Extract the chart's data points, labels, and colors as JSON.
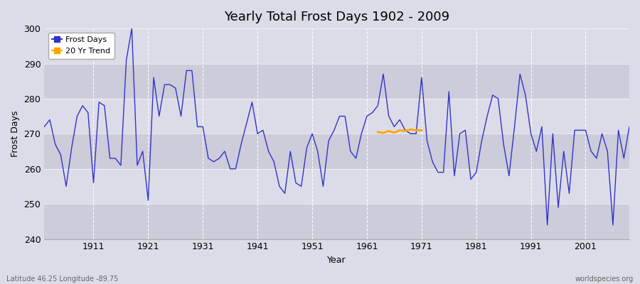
{
  "title": "Yearly Total Frost Days 1902 - 2009",
  "xlabel": "Year",
  "ylabel": "Frost Days",
  "footer_left": "Latitude 46.25 Longitude -89.75",
  "footer_right": "worldspecies.org",
  "ylim": [
    240,
    300
  ],
  "yticks": [
    240,
    250,
    260,
    270,
    280,
    290,
    300
  ],
  "xtick_years": [
    1911,
    1921,
    1931,
    1941,
    1951,
    1961,
    1971,
    1981,
    1991,
    2001
  ],
  "frost_days": {
    "1902": 272,
    "1903": 274,
    "1904": 267,
    "1905": 264,
    "1906": 255,
    "1907": 266,
    "1908": 275,
    "1909": 278,
    "1910": 276,
    "1911": 256,
    "1912": 279,
    "1913": 278,
    "1914": 263,
    "1915": 263,
    "1916": 261,
    "1917": 291,
    "1918": 300,
    "1919": 261,
    "1920": 265,
    "1921": 251,
    "1922": 286,
    "1923": 275,
    "1924": 284,
    "1925": 284,
    "1926": 283,
    "1927": 275,
    "1928": 288,
    "1929": 288,
    "1930": 272,
    "1931": 272,
    "1932": 263,
    "1933": 262,
    "1934": 263,
    "1935": 265,
    "1936": 260,
    "1937": 260,
    "1938": 267,
    "1939": 273,
    "1940": 279,
    "1941": 270,
    "1942": 271,
    "1943": 265,
    "1944": 262,
    "1945": 255,
    "1946": 253,
    "1947": 265,
    "1948": 256,
    "1949": 255,
    "1950": 266,
    "1951": 270,
    "1952": 265,
    "1953": 255,
    "1954": 268,
    "1955": 271,
    "1956": 275,
    "1957": 275,
    "1958": 265,
    "1959": 263,
    "1960": 270,
    "1961": 275,
    "1962": 276,
    "1963": 278,
    "1964": 287,
    "1965": 275,
    "1966": 272,
    "1967": 274,
    "1968": 271,
    "1969": 270,
    "1970": 270,
    "1971": 286,
    "1972": 268,
    "1973": 262,
    "1974": 259,
    "1975": 259,
    "1976": 282,
    "1977": 258,
    "1978": 270,
    "1979": 271,
    "1980": 257,
    "1981": 259,
    "1982": 268,
    "1983": 275,
    "1984": 281,
    "1985": 280,
    "1986": 267,
    "1987": 258,
    "1988": 272,
    "1989": 287,
    "1990": 281,
    "1991": 270,
    "1992": 265,
    "1993": 272,
    "1994": 244,
    "1995": 270,
    "1996": 249,
    "1997": 265,
    "1998": 253,
    "1999": 271,
    "2000": 271,
    "2001": 271,
    "2002": 265,
    "2003": 263,
    "2004": 270,
    "2005": 265,
    "2006": 244,
    "2007": 271,
    "2008": 263,
    "2009": 272
  },
  "trend_years": [
    1963,
    1964,
    1965,
    1966,
    1967,
    1968,
    1969,
    1970,
    1971
  ],
  "trend_values": [
    270.5,
    270.2,
    270.8,
    270.3,
    271.0,
    270.8,
    271.2,
    271.0,
    271.0
  ],
  "line_color": "#3333cc",
  "trend_color": "#ffa500",
  "fig_bg_color": "#dcdce8",
  "plot_bg_light": "#dcdce8",
  "plot_bg_dark": "#c8c8d8",
  "band_alpha": 1.0,
  "legend_frost_color": "#3333cc",
  "legend_trend_color": "#ffa500",
  "band_ranges": [
    [
      240,
      250
    ],
    [
      260,
      270
    ],
    [
      280,
      290
    ]
  ],
  "band_color_dark": "#ccccda",
  "band_color_light": "#dcdce8"
}
